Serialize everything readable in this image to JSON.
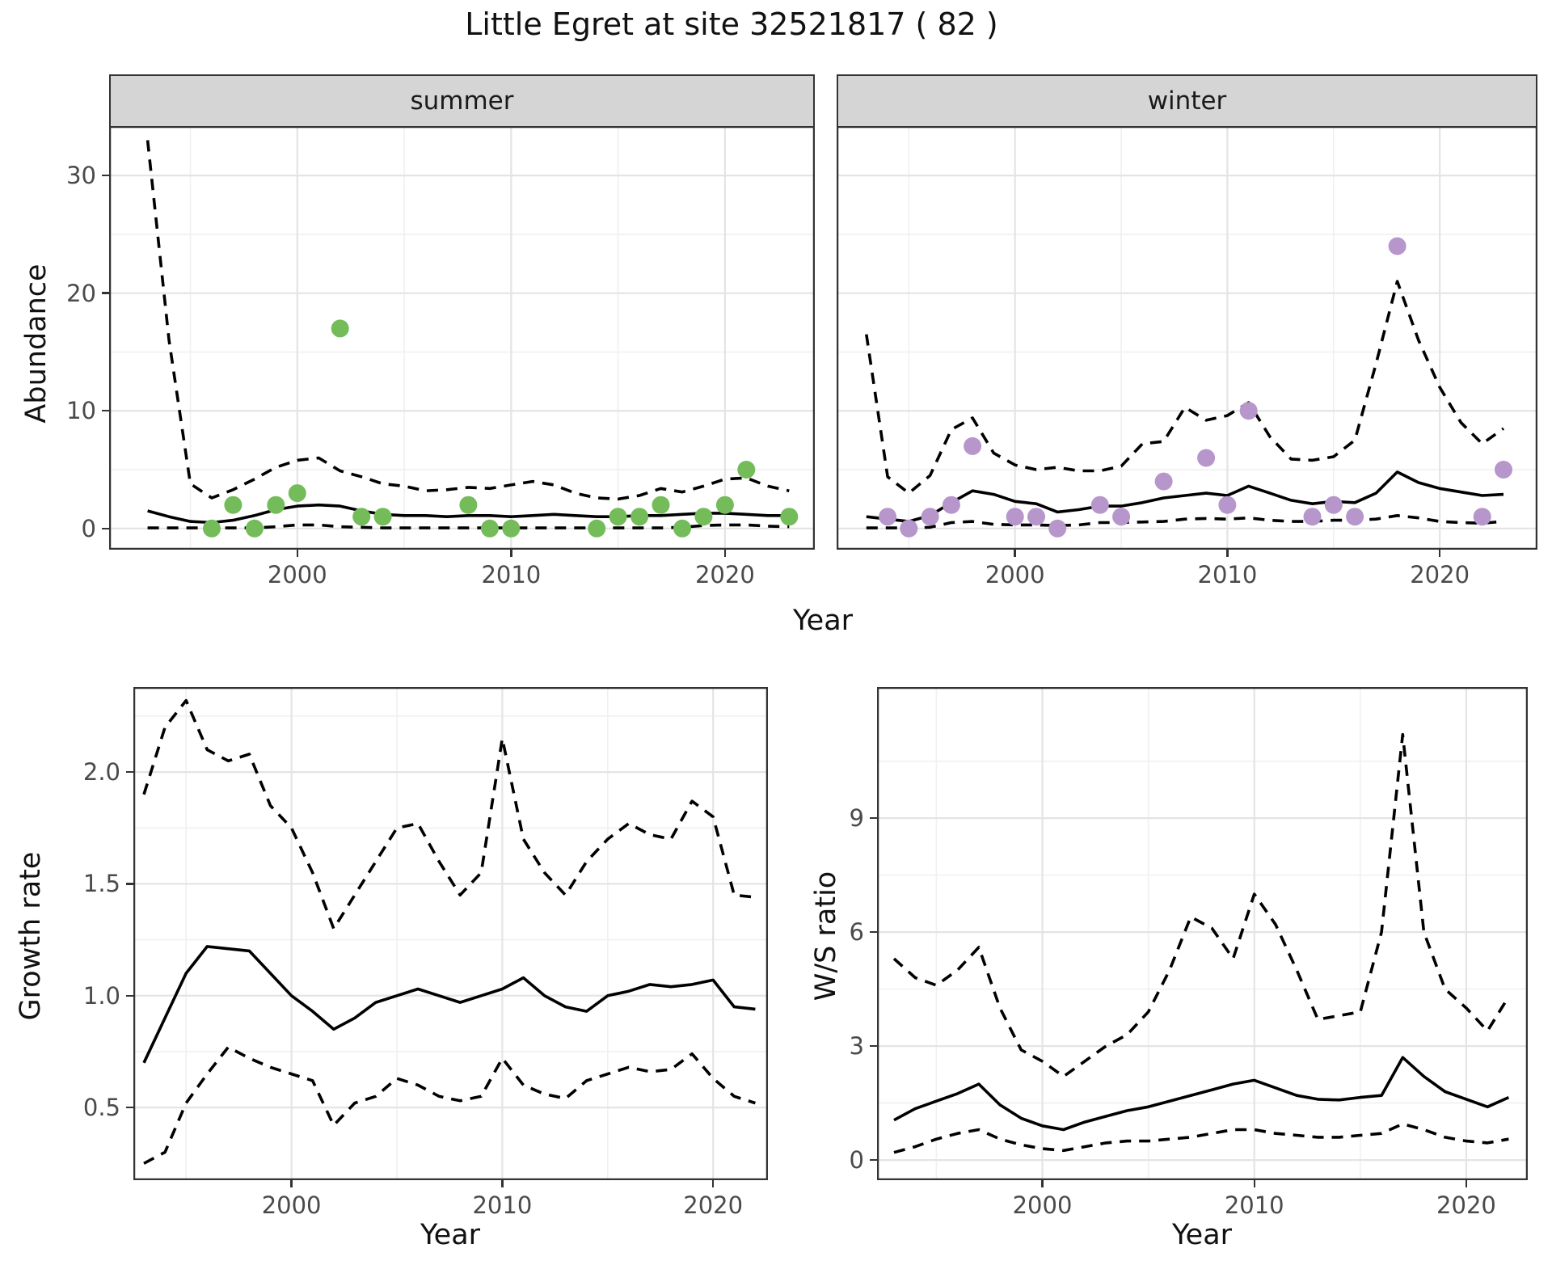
{
  "title": "Little Egret at site 32521817 ( 82 )",
  "colors": {
    "summer_points": "#74BB5A",
    "winter_points": "#B696CB",
    "line": "#000000",
    "panel_border": "#333333",
    "strip_bg": "#d5d5d5",
    "grid_major": "#e4e4e4",
    "grid_minor": "#f0f0f0",
    "tick_text": "#4a4a4a"
  },
  "labels": {
    "top_xlabel": "Year",
    "bottom_left_xlabel": "Year",
    "bottom_right_xlabel": "Year"
  },
  "chart_data": [
    {
      "type": "scatter",
      "facet_label": "summer",
      "ylabel": "Abundance",
      "xlabel": "Year",
      "xlim": [
        1991.2,
        2024.2
      ],
      "ylim": [
        -1.8,
        34.2
      ],
      "x_ticks": [
        2000,
        2010,
        2020
      ],
      "x_minor": [
        1995,
        2005,
        2015
      ],
      "y_ticks": [
        0,
        10,
        20,
        30
      ],
      "y_minor": [
        5,
        15,
        25
      ],
      "grid": true,
      "legend": "none",
      "points": {
        "x": [
          1996,
          1997,
          1998,
          1999,
          2000,
          2002,
          2003,
          2004,
          2008,
          2009,
          2010,
          2014,
          2015,
          2016,
          2017,
          2018,
          2019,
          2020,
          2021,
          2023
        ],
        "y": [
          0,
          2,
          0,
          2,
          3,
          17,
          1,
          1,
          2,
          0,
          0,
          0,
          1,
          1,
          2,
          0,
          1,
          2,
          5,
          1
        ]
      },
      "series": [
        {
          "name": "mean",
          "style": "solid",
          "x_start": 1993,
          "y": [
            1.5,
            1.0,
            0.6,
            0.5,
            0.7,
            1.1,
            1.6,
            1.9,
            2.0,
            1.9,
            1.5,
            1.2,
            1.1,
            1.1,
            1.0,
            1.1,
            1.1,
            1.0,
            1.1,
            1.2,
            1.1,
            1.0,
            1.0,
            1.1,
            1.1,
            1.2,
            1.3,
            1.3,
            1.2,
            1.1,
            1.1
          ]
        },
        {
          "name": "upper95",
          "style": "dashed",
          "x_start": 1993,
          "y": [
            33,
            16,
            3.8,
            2.6,
            3.3,
            4.2,
            5.2,
            5.8,
            6.0,
            4.9,
            4.4,
            3.8,
            3.6,
            3.2,
            3.3,
            3.5,
            3.4,
            3.7,
            4.0,
            3.7,
            3.0,
            2.6,
            2.5,
            2.8,
            3.4,
            3.1,
            3.6,
            4.2,
            4.3,
            3.6,
            3.2
          ]
        },
        {
          "name": "lower95",
          "style": "dashed",
          "x_start": 1993,
          "y": [
            0.05,
            0.05,
            0.05,
            0.05,
            0.05,
            0.05,
            0.15,
            0.3,
            0.3,
            0.15,
            0.1,
            0.05,
            0.05,
            0.05,
            0.05,
            0.05,
            0.05,
            0.05,
            0.05,
            0.05,
            0.05,
            0.05,
            0.05,
            0.05,
            0.05,
            0.1,
            0.25,
            0.3,
            0.3,
            0.2,
            0.15
          ]
        }
      ]
    },
    {
      "type": "scatter",
      "facet_label": "winter",
      "ylabel": "Abundance",
      "xlabel": "Year",
      "xlim": [
        1991.6,
        2024.6
      ],
      "ylim": [
        -1.8,
        34.2
      ],
      "x_ticks": [
        2000,
        2010,
        2020
      ],
      "x_minor": [
        1995,
        2005,
        2015
      ],
      "y_ticks": [
        0,
        10,
        20,
        30
      ],
      "y_minor": [
        5,
        15,
        25
      ],
      "grid": true,
      "legend": "none",
      "points": {
        "x": [
          1994,
          1995,
          1996,
          1997,
          1998,
          2000,
          2001,
          2002,
          2004,
          2005,
          2007,
          2009,
          2010,
          2011,
          2014,
          2015,
          2016,
          2018,
          2022,
          2023
        ],
        "y": [
          1,
          0,
          1,
          2,
          7,
          1,
          1,
          0,
          2,
          1,
          4,
          6,
          2,
          10,
          1,
          2,
          1,
          24,
          1,
          5
        ]
      },
      "series": [
        {
          "name": "mean",
          "style": "solid",
          "x_start": 1993,
          "y": [
            1.0,
            0.8,
            0.6,
            1.1,
            2.2,
            3.2,
            2.9,
            2.3,
            2.1,
            1.4,
            1.6,
            1.9,
            1.9,
            2.2,
            2.6,
            2.8,
            3.0,
            2.8,
            3.6,
            3.0,
            2.4,
            2.1,
            2.3,
            2.2,
            3.0,
            4.8,
            3.9,
            3.4,
            3.1,
            2.8,
            2.9
          ]
        },
        {
          "name": "upper95",
          "style": "dashed",
          "x_start": 1993,
          "y": [
            16.5,
            4.4,
            3.0,
            4.5,
            8.4,
            9.4,
            6.4,
            5.4,
            5.0,
            5.2,
            4.9,
            4.9,
            5.3,
            7.2,
            7.4,
            10.3,
            9.2,
            9.6,
            10.7,
            7.8,
            5.9,
            5.8,
            6.1,
            7.5,
            14.0,
            21.0,
            16.0,
            12.0,
            9.0,
            7.2,
            8.5
          ]
        },
        {
          "name": "lower95",
          "style": "dashed",
          "x_start": 1993,
          "y": [
            0.05,
            0.05,
            0.05,
            0.1,
            0.5,
            0.6,
            0.35,
            0.3,
            0.3,
            0.25,
            0.3,
            0.5,
            0.5,
            0.55,
            0.6,
            0.8,
            0.85,
            0.8,
            0.9,
            0.7,
            0.6,
            0.6,
            0.7,
            0.7,
            0.8,
            1.1,
            0.9,
            0.6,
            0.5,
            0.45,
            0.6
          ]
        }
      ]
    },
    {
      "type": "line",
      "facet_label": "",
      "ylabel": "Growth rate",
      "xlabel": "Year",
      "xlim": [
        1992.5,
        2022.6
      ],
      "ylim": [
        0.175,
        2.38
      ],
      "x_ticks": [
        2000,
        2010,
        2020
      ],
      "x_minor": [
        1995,
        2005,
        2015
      ],
      "y_ticks": [
        0.5,
        1.0,
        1.5,
        2.0
      ],
      "y_minor": [
        0.75,
        1.25,
        1.75,
        2.25
      ],
      "y_tick_labels": [
        "0.5",
        "1.0",
        "1.5",
        "2.0"
      ],
      "grid": true,
      "legend": "none",
      "series": [
        {
          "name": "mean",
          "style": "solid",
          "x_start": 1993,
          "y": [
            0.7,
            0.9,
            1.1,
            1.22,
            1.21,
            1.2,
            1.1,
            1.0,
            0.93,
            0.85,
            0.9,
            0.97,
            1.0,
            1.03,
            1.0,
            0.97,
            1.0,
            1.03,
            1.08,
            1.0,
            0.95,
            0.93,
            1.0,
            1.02,
            1.05,
            1.04,
            1.05,
            1.07,
            0.95,
            0.94
          ]
        },
        {
          "name": "upper95",
          "style": "dashed",
          "x_start": 1993,
          "y": [
            1.9,
            2.2,
            2.32,
            2.1,
            2.05,
            2.08,
            1.85,
            1.75,
            1.55,
            1.3,
            1.45,
            1.6,
            1.75,
            1.77,
            1.6,
            1.45,
            1.55,
            2.15,
            1.7,
            1.55,
            1.45,
            1.6,
            1.7,
            1.77,
            1.72,
            1.7,
            1.87,
            1.8,
            1.45,
            1.44
          ]
        },
        {
          "name": "lower95",
          "style": "dashed",
          "x_start": 1993,
          "y": [
            0.25,
            0.3,
            0.52,
            0.65,
            0.77,
            0.72,
            0.68,
            0.65,
            0.62,
            0.42,
            0.52,
            0.55,
            0.63,
            0.6,
            0.55,
            0.53,
            0.55,
            0.72,
            0.6,
            0.56,
            0.54,
            0.62,
            0.65,
            0.68,
            0.66,
            0.67,
            0.74,
            0.63,
            0.55,
            0.52
          ]
        }
      ]
    },
    {
      "type": "line",
      "facet_label": "",
      "ylabel": "W/S ratio",
      "xlabel": "Year",
      "xlim": [
        1992.2,
        2022.9
      ],
      "ylim": [
        -0.53,
        12.45
      ],
      "x_ticks": [
        2000,
        2010,
        2020
      ],
      "x_minor": [
        1995,
        2005,
        2015
      ],
      "y_ticks": [
        0,
        3,
        6,
        9
      ],
      "y_minor": [
        1.5,
        4.5,
        7.5,
        10.5
      ],
      "y_tick_labels": [
        "0",
        "3",
        "6",
        "9"
      ],
      "grid": true,
      "legend": "none",
      "series": [
        {
          "name": "mean",
          "style": "solid",
          "x_start": 1993,
          "y": [
            1.05,
            1.35,
            1.55,
            1.75,
            2.0,
            1.45,
            1.1,
            0.9,
            0.8,
            1.0,
            1.15,
            1.3,
            1.4,
            1.55,
            1.7,
            1.85,
            2.0,
            2.1,
            1.9,
            1.7,
            1.6,
            1.58,
            1.65,
            1.7,
            2.7,
            2.2,
            1.8,
            1.6,
            1.4,
            1.65
          ]
        },
        {
          "name": "upper95",
          "style": "dashed",
          "x_start": 1993,
          "y": [
            5.3,
            4.8,
            4.6,
            5.0,
            5.6,
            4.0,
            2.9,
            2.6,
            2.2,
            2.6,
            3.0,
            3.3,
            3.9,
            5.0,
            6.4,
            6.1,
            5.3,
            7.0,
            6.2,
            5.0,
            3.7,
            3.8,
            3.9,
            6.0,
            11.2,
            6.0,
            4.5,
            4.0,
            3.4,
            4.3
          ]
        },
        {
          "name": "lower95",
          "style": "dashed",
          "x_start": 1993,
          "y": [
            0.2,
            0.35,
            0.55,
            0.7,
            0.8,
            0.55,
            0.4,
            0.3,
            0.25,
            0.35,
            0.45,
            0.5,
            0.5,
            0.55,
            0.6,
            0.7,
            0.8,
            0.8,
            0.7,
            0.65,
            0.6,
            0.6,
            0.65,
            0.7,
            0.95,
            0.8,
            0.6,
            0.5,
            0.45,
            0.55
          ]
        }
      ]
    }
  ]
}
